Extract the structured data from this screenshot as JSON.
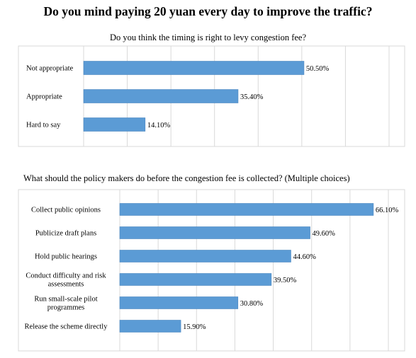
{
  "title": "Do you mind paying 20 yuan every day to improve the traffic?",
  "colors": {
    "bar": "#5b9bd5"
  },
  "chart_data": [
    {
      "type": "bar",
      "orientation": "horizontal",
      "title": "Do you think the timing is right to levy congestion fee?",
      "categories": [
        "Not appropriate",
        "Appropriate",
        "Hard to say"
      ],
      "values": [
        50.5,
        35.4,
        14.1
      ],
      "labels": [
        "50.50%",
        "35.40%",
        "14.10%"
      ],
      "xlim": [
        0,
        70
      ],
      "grid": true,
      "legend": "none"
    },
    {
      "type": "bar",
      "orientation": "horizontal",
      "title": "What should the policy makers do before the congestion fee is collected? (Multiple choices)",
      "categories": [
        "Collect public opinions",
        "Publicize draft plans",
        "Hold public hearings",
        "Conduct difficulty and risk assessments",
        "Run small-scale pilot programmes",
        "Release the scheme directly"
      ],
      "values": [
        66.1,
        49.6,
        44.6,
        39.5,
        30.8,
        15.9
      ],
      "labels": [
        "66.10%",
        "49.60%",
        "44.60%",
        "39.50%",
        "30.80%",
        "15.90%"
      ],
      "xlim": [
        0,
        70
      ],
      "grid": true,
      "legend": "none"
    }
  ]
}
